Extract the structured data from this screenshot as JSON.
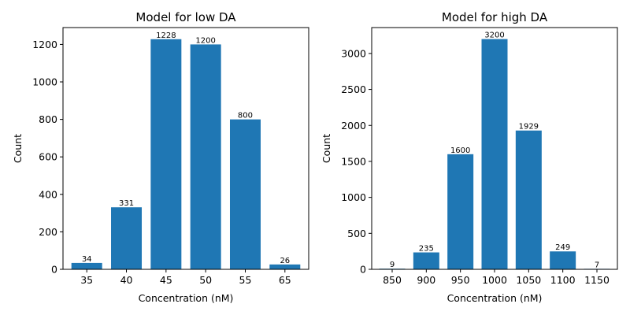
{
  "chart_data": [
    {
      "type": "bar",
      "title": "Model for low DA",
      "xlabel": "Concentration (nM)",
      "ylabel": "Count",
      "categories": [
        "35",
        "40",
        "45",
        "50",
        "55",
        "65"
      ],
      "values": [
        34,
        331,
        1228,
        1200,
        800,
        26
      ],
      "data_labels": [
        "34",
        "331",
        "1228",
        "1200",
        "800",
        "26"
      ],
      "yticks": [
        0,
        200,
        400,
        600,
        800,
        1000,
        1200
      ],
      "ylim": [
        0,
        1290
      ],
      "color": "#1f77b4",
      "grid": false
    },
    {
      "type": "bar",
      "title": "Model for high DA",
      "xlabel": "Concentration (nM)",
      "ylabel": "Count",
      "categories": [
        "850",
        "900",
        "950",
        "1000",
        "1050",
        "1100",
        "1150"
      ],
      "values": [
        9,
        235,
        1600,
        3200,
        1929,
        249,
        7
      ],
      "data_labels": [
        "9",
        "235",
        "1600",
        "3200",
        "1929",
        "249",
        "7"
      ],
      "yticks": [
        0,
        500,
        1000,
        1500,
        2000,
        2500,
        3000
      ],
      "ylim": [
        0,
        3360
      ],
      "color": "#1f77b4",
      "grid": false
    }
  ]
}
